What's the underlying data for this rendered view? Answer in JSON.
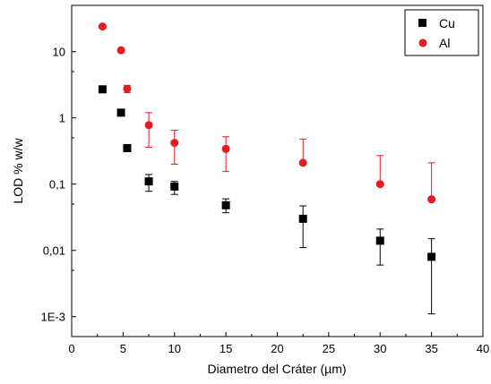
{
  "chart_data": {
    "type": "scatter",
    "xlabel": "Diametro del Cráter (µm)",
    "ylabel": "LOD % w/w",
    "xlim": [
      0,
      40
    ],
    "ylim": [
      0.0005,
      50
    ],
    "yscale": "log",
    "grid": false,
    "legend_position": "top-right",
    "x_ticks": [
      0,
      5,
      10,
      15,
      20,
      25,
      30,
      35,
      40
    ],
    "x_tick_labels": [
      "0",
      "5",
      "10",
      "15",
      "20",
      "25",
      "30",
      "35",
      "40"
    ],
    "y_ticks": [
      0.001,
      0.01,
      0.1,
      1,
      10
    ],
    "y_tick_labels": [
      "1E-3",
      "0,01",
      "0,1",
      "1",
      "10"
    ],
    "series": [
      {
        "name": "Cu",
        "marker": "square",
        "color": "#000000",
        "points": [
          {
            "x": 3.0,
            "y": 2.7,
            "err_low": 2.7,
            "err_high": 2.7
          },
          {
            "x": 4.8,
            "y": 1.2,
            "err_low": 1.2,
            "err_high": 1.2
          },
          {
            "x": 5.4,
            "y": 0.35,
            "err_low": 0.35,
            "err_high": 0.35
          },
          {
            "x": 7.5,
            "y": 0.11,
            "err_low": 0.078,
            "err_high": 0.14
          },
          {
            "x": 10.0,
            "y": 0.092,
            "err_low": 0.07,
            "err_high": 0.11
          },
          {
            "x": 15.0,
            "y": 0.048,
            "err_low": 0.037,
            "err_high": 0.06
          },
          {
            "x": 22.5,
            "y": 0.03,
            "err_low": 0.011,
            "err_high": 0.047
          },
          {
            "x": 30.0,
            "y": 0.014,
            "err_low": 0.006,
            "err_high": 0.021
          },
          {
            "x": 35.0,
            "y": 0.008,
            "err_low": 0.0011,
            "err_high": 0.015
          }
        ]
      },
      {
        "name": "Al",
        "marker": "circle",
        "color": "#e8191f",
        "points": [
          {
            "x": 3.0,
            "y": 24.0,
            "err_low": 24.0,
            "err_high": 24.0
          },
          {
            "x": 4.8,
            "y": 10.5,
            "err_low": 10.5,
            "err_high": 10.5
          },
          {
            "x": 5.4,
            "y": 2.75,
            "err_low": 2.4,
            "err_high": 3.1
          },
          {
            "x": 7.5,
            "y": 0.78,
            "err_low": 0.36,
            "err_high": 1.2
          },
          {
            "x": 10.0,
            "y": 0.42,
            "err_low": 0.2,
            "err_high": 0.65
          },
          {
            "x": 15.0,
            "y": 0.34,
            "err_low": 0.155,
            "err_high": 0.52
          },
          {
            "x": 22.5,
            "y": 0.21,
            "err_low": 0.21,
            "err_high": 0.48
          },
          {
            "x": 30.0,
            "y": 0.1,
            "err_low": 0.1,
            "err_high": 0.27
          },
          {
            "x": 35.0,
            "y": 0.059,
            "err_low": 0.059,
            "err_high": 0.21
          }
        ]
      }
    ]
  }
}
